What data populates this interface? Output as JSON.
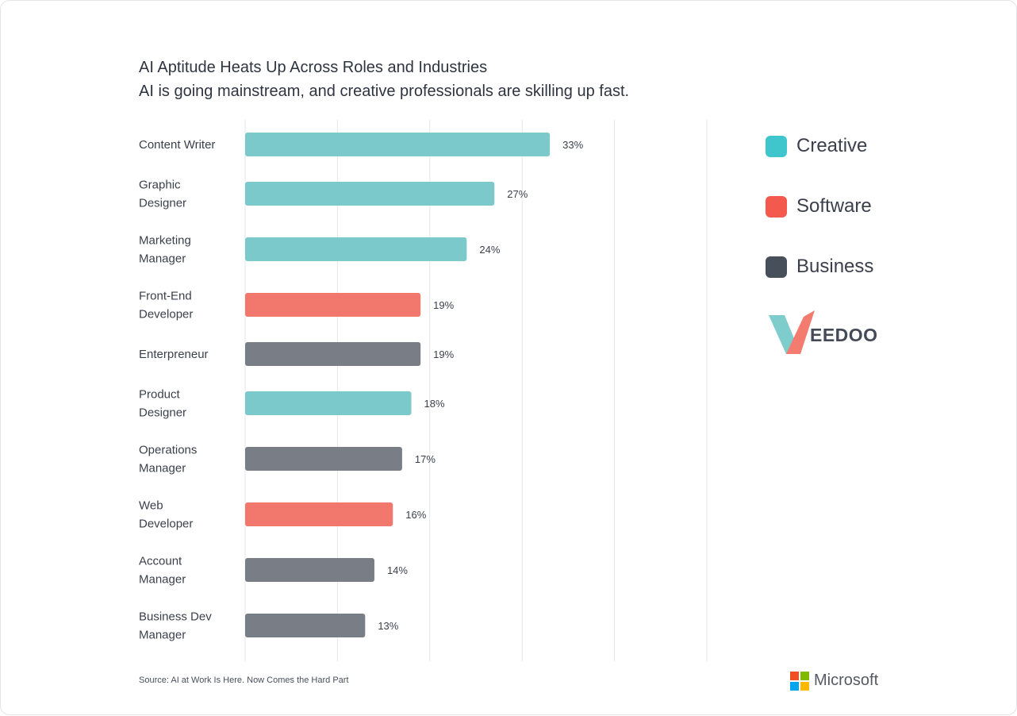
{
  "chart_data": {
    "type": "bar",
    "orientation": "horizontal",
    "title": "AI Aptitude Heats Up Across Roles and Industries",
    "subtitle": "AI is going mainstream, and creative professionals are skilling up fast.",
    "xlabel": "",
    "ylabel": "",
    "xlim": [
      0,
      50
    ],
    "grid": true,
    "value_suffix": "%",
    "categories": [
      [
        "Content Writer"
      ],
      [
        "Graphic",
        "Designer"
      ],
      [
        "Marketing",
        "Manager"
      ],
      [
        "Front-End",
        "Developer"
      ],
      [
        "Enterpreneur"
      ],
      [
        "Product",
        "Designer"
      ],
      [
        "Operations",
        "Manager"
      ],
      [
        "Web",
        "Developer"
      ],
      [
        "Account",
        "Manager"
      ],
      [
        "Business Dev",
        "Manager"
      ]
    ],
    "values": [
      33,
      27,
      24,
      19,
      19,
      18,
      17,
      16,
      14,
      13
    ],
    "groups": [
      "Creative",
      "Creative",
      "Creative",
      "Software",
      "Business",
      "Creative",
      "Business",
      "Software",
      "Business",
      "Business"
    ],
    "legend": [
      {
        "name": "Creative",
        "color": "#3ec6cc"
      },
      {
        "name": "Software",
        "color": "#f35a4d"
      },
      {
        "name": "Business",
        "color": "#474f5b"
      }
    ],
    "bar_colors": {
      "Creative": "#7cc9cb",
      "Software": "#f2786d",
      "Business": "#797d85"
    },
    "grid_color": "#e6e7ea",
    "legend_placement": "right"
  },
  "brand": {
    "name": "EEDOO",
    "mark_colors": [
      "#f47b6f",
      "#7fcccd"
    ]
  },
  "source": "Source: AI at Work Is Here. Now Comes the Hard Part",
  "microsoft": {
    "name": "Microsoft",
    "logo_colors": [
      "#f25022",
      "#7fba00",
      "#00a4ef",
      "#ffb900"
    ]
  }
}
